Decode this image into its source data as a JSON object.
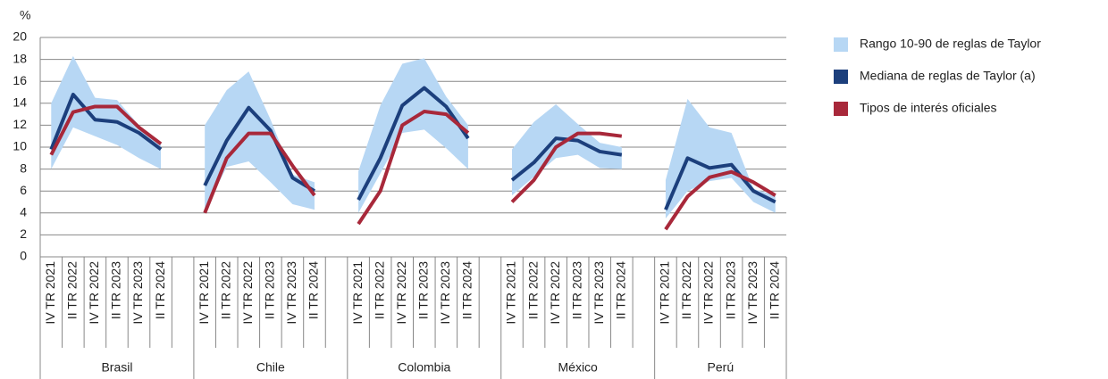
{
  "chart_data": {
    "type": "line",
    "y_label": "%",
    "ylim": [
      0,
      20
    ],
    "yticks": [
      0,
      2,
      4,
      6,
      8,
      10,
      12,
      14,
      16,
      18,
      20
    ],
    "grid": true,
    "legend": "right",
    "groups": [
      "Brasil",
      "Chile",
      "Colombia",
      "México",
      "Perú"
    ],
    "categories": [
      "IV TR 2021",
      "II TR 2022",
      "IV TR 2022",
      "II TR 2023",
      "IV TR 2023",
      "II TR 2024",
      null,
      "IV TR 2021",
      "II TR 2022",
      "IV TR 2022",
      "II TR 2023",
      "IV TR 2023",
      "II TR 2024",
      null,
      "IV TR 2021",
      "II TR 2022",
      "IV TR 2022",
      "II TR 2023",
      "IV TR 2023",
      "II TR 2024",
      null,
      "IV TR 2021",
      "II TR 2022",
      "IV TR 2022",
      "II TR 2023",
      "IV TR 2023",
      "II TR 2024",
      null,
      "IV TR 2021",
      "II TR 2022",
      "IV TR 2022",
      "II TR 2023",
      "IV TR 2023",
      "II TR 2024"
    ],
    "band": {
      "name": "Rango 10-90 de reglas de Taylor",
      "color": "#b7d7f4",
      "low": [
        8,
        11.8,
        11,
        10.2,
        9,
        8,
        null,
        4.2,
        8.2,
        8.7,
        6.8,
        4.8,
        4.3,
        null,
        4,
        7.6,
        11.3,
        11.6,
        9.9,
        8,
        null,
        5.6,
        7.3,
        9,
        9.3,
        8.1,
        8,
        null,
        3.5,
        6,
        6.9,
        7.2,
        5,
        4
      ],
      "high": [
        14,
        18.3,
        14.5,
        14.3,
        12,
        10.3,
        null,
        12,
        15.2,
        16.9,
        12.5,
        7.5,
        6.8,
        null,
        7.8,
        13.8,
        17.6,
        18.1,
        14.6,
        12,
        null,
        9.8,
        12.3,
        13.9,
        12.1,
        10.4,
        10,
        null,
        7,
        14.4,
        11.8,
        11.3,
        6.2,
        5.6
      ]
    },
    "series": [
      {
        "name": "Mediana de reglas de Taylor (a)",
        "color": "#1c3f7c",
        "values": [
          9.8,
          14.8,
          12.5,
          12.3,
          11.3,
          9.8,
          null,
          6.5,
          10.6,
          13.6,
          11.5,
          7.2,
          6,
          null,
          5.2,
          9,
          13.8,
          15.4,
          13.7,
          10.8,
          null,
          7,
          8.6,
          10.8,
          10.6,
          9.6,
          9.3,
          null,
          4.3,
          9,
          8.1,
          8.4,
          6,
          5
        ]
      },
      {
        "name": "Tipos de interés oficiales",
        "color": "#a8283a",
        "values": [
          9.3,
          13.2,
          13.7,
          13.7,
          11.8,
          10.3,
          null,
          4,
          9,
          11.25,
          11.25,
          8.3,
          5.6,
          null,
          3,
          6,
          12,
          13.25,
          13,
          11.3,
          null,
          5,
          7,
          10,
          11.25,
          11.25,
          11,
          null,
          2.5,
          5.5,
          7.25,
          7.75,
          6.8,
          5.6
        ]
      }
    ]
  }
}
